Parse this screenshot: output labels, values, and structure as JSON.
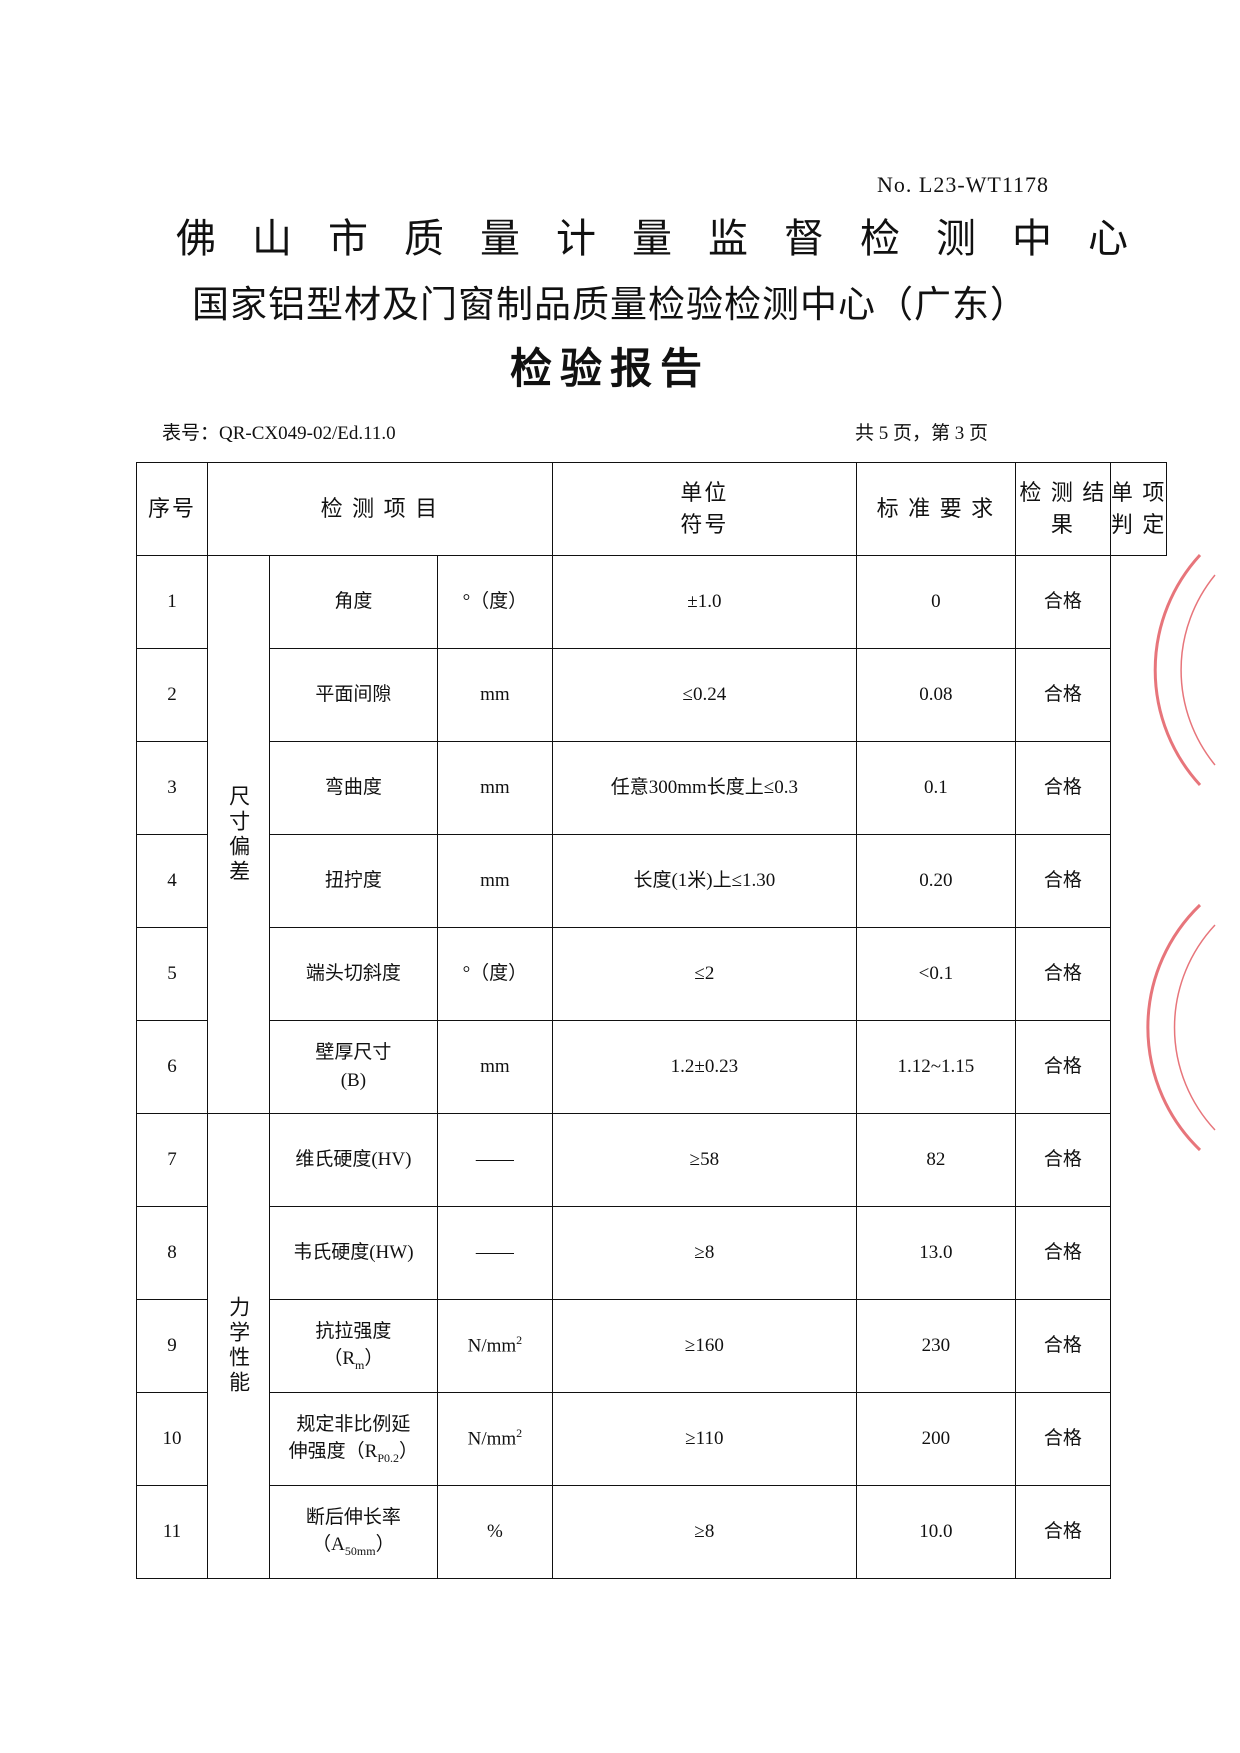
{
  "header": {
    "report_no": "No. L23-WT1178",
    "org_line_1": "佛山市质量计量监督检测中心",
    "org_line_2": "国家铝型材及门窗制品质量检验检测中心（广东）",
    "title": "检验报告",
    "form_no": "表号：QR-CX049-02/Ed.11.0",
    "page_info": "共 5 页，第 3 页"
  },
  "table": {
    "columns": [
      [
        "序号"
      ],
      [
        "检 测 项 目"
      ],
      [
        "单位",
        "符号"
      ],
      [
        "标 准 要 求"
      ],
      [
        "检 测 结 果"
      ],
      [
        "单 项",
        "判 定"
      ]
    ],
    "groups": [
      {
        "label": "尺寸偏差",
        "rows": [
          {
            "no": "1",
            "item": [
              [
                {
                  "text": "角度"
                }
              ]
            ],
            "unit": [
              {
                "text": "°（度）"
              }
            ],
            "requirement": "±1.0",
            "result": "0",
            "judgment": "合格"
          },
          {
            "no": "2",
            "item": [
              [
                {
                  "text": "平面间隙"
                }
              ]
            ],
            "unit": [
              {
                "text": "mm"
              }
            ],
            "requirement": "≤0.24",
            "result": "0.08",
            "judgment": "合格"
          },
          {
            "no": "3",
            "item": [
              [
                {
                  "text": "弯曲度"
                }
              ]
            ],
            "unit": [
              {
                "text": "mm"
              }
            ],
            "requirement": "任意300mm长度上≤0.3",
            "result": "0.1",
            "judgment": "合格"
          },
          {
            "no": "4",
            "item": [
              [
                {
                  "text": "扭拧度"
                }
              ]
            ],
            "unit": [
              {
                "text": "mm"
              }
            ],
            "requirement": "长度(1米)上≤1.30",
            "result": "0.20",
            "judgment": "合格"
          },
          {
            "no": "5",
            "item": [
              [
                {
                  "text": "端头切斜度"
                }
              ]
            ],
            "unit": [
              {
                "text": "°（度）"
              }
            ],
            "requirement": "≤2",
            "result": "<0.1",
            "judgment": "合格"
          },
          {
            "no": "6",
            "item": [
              [
                {
                  "text": "壁厚尺寸"
                }
              ],
              [
                {
                  "text": "(B)"
                }
              ]
            ],
            "unit": [
              {
                "text": "mm"
              }
            ],
            "requirement": "1.2±0.23",
            "result": "1.12~1.15",
            "judgment": "合格"
          }
        ]
      },
      {
        "label": "力学性能",
        "rows": [
          {
            "no": "7",
            "item": [
              [
                {
                  "text": "维氏硬度(HV)"
                }
              ]
            ],
            "unit": [
              {
                "text": "——"
              }
            ],
            "requirement": "≥58",
            "result": "82",
            "judgment": "合格"
          },
          {
            "no": "8",
            "item": [
              [
                {
                  "text": "韦氏硬度(HW)"
                }
              ]
            ],
            "unit": [
              {
                "text": "——"
              }
            ],
            "requirement": "≥8",
            "result": "13.0",
            "judgment": "合格"
          },
          {
            "no": "9",
            "item": [
              [
                {
                  "text": "抗拉强度"
                }
              ],
              [
                {
                  "text": "（R"
                },
                {
                  "text": "m",
                  "script": "sub"
                },
                {
                  "text": "）"
                }
              ]
            ],
            "unit": [
              {
                "text": "N/mm"
              },
              {
                "text": "2",
                "script": "sup"
              }
            ],
            "requirement": "≥160",
            "result": "230",
            "judgment": "合格"
          },
          {
            "no": "10",
            "item": [
              [
                {
                  "text": "规定非比例延"
                }
              ],
              [
                {
                  "text": "伸强度（R"
                },
                {
                  "text": "P0.2",
                  "script": "sub"
                },
                {
                  "text": "）"
                }
              ]
            ],
            "unit": [
              {
                "text": "N/mm"
              },
              {
                "text": "2",
                "script": "sup"
              }
            ],
            "requirement": "≥110",
            "result": "200",
            "judgment": "合格"
          },
          {
            "no": "11",
            "item": [
              [
                {
                  "text": "断后伸长率"
                }
              ],
              [
                {
                  "text": "（A"
                },
                {
                  "text": "50mm",
                  "script": "sub"
                },
                {
                  "text": "）"
                }
              ]
            ],
            "unit": [
              {
                "text": "%"
              }
            ],
            "requirement": "≥8",
            "result": "10.0",
            "judgment": "合格"
          }
        ]
      }
    ]
  }
}
